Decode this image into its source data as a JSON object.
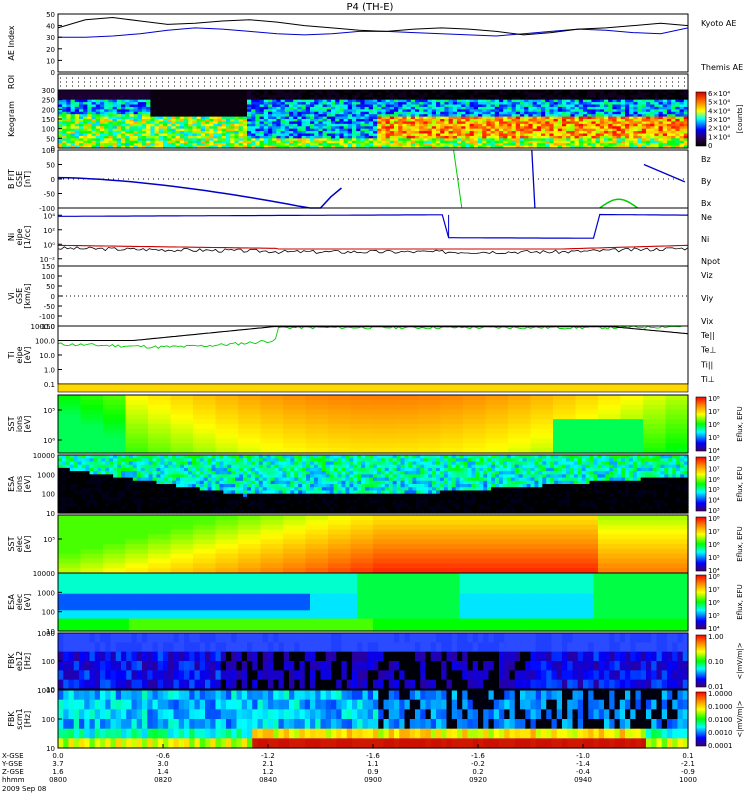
{
  "title": "P4 (TH-E)",
  "chart_data": {
    "type": "heatmap",
    "title": "P4 (TH-E)",
    "date": "2009 Sep 08",
    "x": {
      "label": "hhmm",
      "ticks": [
        "0800",
        "0820",
        "0840",
        "0900",
        "0920",
        "0940",
        "1000"
      ],
      "range": [
        "0800",
        "1000"
      ]
    },
    "orbit_rows": [
      {
        "label": "X-GSE",
        "values": [
          "0.0",
          "-0.6",
          "-1.2",
          "-1.6",
          "-1.6",
          "-1.0",
          "0.1"
        ]
      },
      {
        "label": "Y-GSE",
        "values": [
          "3.7",
          "3.0",
          "2.1",
          "1.1",
          "-0.2",
          "-1.4",
          "-2.1"
        ]
      },
      {
        "label": "Z-GSE",
        "values": [
          "1.6",
          "1.4",
          "1.2",
          "0.9",
          "0.2",
          "-0.4",
          "-0.9"
        ]
      }
    ],
    "panels": [
      {
        "id": "ae",
        "ylabel": "AE Index",
        "yticks": [
          "0",
          "10",
          "20",
          "30",
          "40",
          "50"
        ],
        "ylim": [
          0,
          50
        ],
        "legend": [
          {
            "name": "Kyoto AE",
            "color": "#0000cc"
          },
          {
            "name": "Themis AE",
            "color": "#000000"
          }
        ],
        "series": [
          {
            "name": "Kyoto AE",
            "color": "#0000cc",
            "values": [
              30,
              30,
              31,
              33,
              36,
              38,
              37,
              35,
              33,
              32,
              33,
              35,
              35,
              34,
              33,
              32,
              31,
              33,
              35,
              37,
              36,
              34,
              33,
              38
            ]
          },
          {
            "name": "Themis AE",
            "color": "#000000",
            "values": [
              38,
              45,
              47,
              44,
              41,
              42,
              44,
              45,
              43,
              40,
              38,
              36,
              35,
              37,
              38,
              37,
              35,
              32,
              34,
              37,
              38,
              40,
              42,
              40
            ]
          }
        ]
      },
      {
        "id": "roi",
        "ylabel": "ROI"
      },
      {
        "id": "keogram",
        "ylabel": "Keogram",
        "yticks": [
          "0",
          "50",
          "100",
          "150",
          "200",
          "250",
          "300"
        ],
        "ylim": [
          0,
          300
        ],
        "colorbar": {
          "label": "[counts]",
          "ticks": [
            "0",
            "1×10⁴",
            "2×10⁴",
            "3×10⁴",
            "4×10⁴",
            "5×10⁴",
            "6×10⁴"
          ]
        }
      },
      {
        "id": "bfit",
        "ylabel": "B FIT",
        "units": "[nT]",
        "sub": "GSE",
        "yticks": [
          "-100",
          "-50",
          "0",
          "50",
          "100"
        ],
        "ylim": [
          -100,
          100
        ],
        "legend": [
          {
            "name": "Bz",
            "color": "#cc0000"
          },
          {
            "name": "By",
            "color": "#00aa00"
          },
          {
            "name": "Bx",
            "color": "#0000cc"
          }
        ]
      },
      {
        "id": "ni",
        "ylabel": "Ni",
        "units": "[1/cc]",
        "sub": "eipe",
        "yticks": [
          "10⁻²",
          "10⁰",
          "10²",
          "10⁴"
        ],
        "legend": [
          {
            "name": "Ne",
            "color": "#cc0000"
          },
          {
            "name": "Ni",
            "color": "#000000"
          },
          {
            "name": "Npot",
            "color": "#0000cc"
          }
        ]
      },
      {
        "id": "vi",
        "ylabel": "Vi",
        "units": "[km/s]",
        "sub": "GSE",
        "yticks": [
          "-150",
          "-100",
          "-50",
          "0",
          "50",
          "100",
          "150"
        ],
        "ylim": [
          -150,
          150
        ],
        "legend": [
          {
            "name": "Viz",
            "color": "#cc0000"
          },
          {
            "name": "Viy",
            "color": "#00aa00"
          },
          {
            "name": "Vix",
            "color": "#0000cc"
          }
        ]
      },
      {
        "id": "ti",
        "ylabel": "Ti",
        "units": "[eV]",
        "sub": "eipe",
        "yticks": [
          "0.1",
          "1.0",
          "10.0",
          "100.0",
          "1000.0"
        ],
        "ylim": [
          0.1,
          1000
        ],
        "log": true,
        "legend": [
          {
            "name": "Te||",
            "color": "#000000"
          },
          {
            "name": "Te⊥",
            "color": "#cc0000"
          },
          {
            "name": "Ti||",
            "color": "#00aa00"
          },
          {
            "name": "Ti⊥",
            "color": "#0000cc"
          }
        ]
      },
      {
        "id": "sst_i",
        "ylabel": "SST",
        "units": "[eV]",
        "sub": "ions",
        "yticks": [
          "10⁵",
          "10⁶"
        ],
        "colorbar": {
          "label": "Eflux, EFU",
          "ticks": [
            "10⁴",
            "10⁵",
            "10⁶",
            "10⁷",
            "10⁸"
          ]
        }
      },
      {
        "id": "esa_i",
        "ylabel": "ESA",
        "units": "[eV]",
        "sub": "ions",
        "yticks": [
          "10",
          "100",
          "1000",
          "10000"
        ],
        "colorbar": {
          "label": "Eflux, EFU",
          "ticks": [
            "10³",
            "10⁴",
            "10⁵",
            "10⁶",
            "10⁷",
            "10⁸"
          ]
        }
      },
      {
        "id": "sst_e",
        "ylabel": "SST",
        "units": "[eV]",
        "sub": "elec",
        "yticks": [
          "10⁵"
        ],
        "colorbar": {
          "label": "Eflux, EFU",
          "ticks": [
            "10⁴",
            "10⁵",
            "10⁶",
            "10⁷",
            "10⁸"
          ]
        }
      },
      {
        "id": "esa_e",
        "ylabel": "ESA",
        "units": "[eV]",
        "sub": "elec",
        "yticks": [
          "10",
          "100",
          "1000",
          "10000"
        ],
        "colorbar": {
          "label": "Eflux, EFU",
          "ticks": [
            "10⁴",
            "10⁵",
            "10⁶",
            "10⁷",
            "10⁸"
          ]
        }
      },
      {
        "id": "fbk1",
        "ylabel": "FBK",
        "units": "[Hz]",
        "sub": "eb12",
        "yticks": [
          "10",
          "100",
          "1000"
        ],
        "colorbar": {
          "label": "<|mV/m|>",
          "ticks": [
            "0.01",
            "0.10",
            "1.00"
          ]
        }
      },
      {
        "id": "fbk2",
        "ylabel": "FBK",
        "units": "[Hz]",
        "sub": "scm1",
        "yticks": [
          "10",
          "100",
          "1000"
        ],
        "colorbar": {
          "label": "<|mV/m|>",
          "ticks": [
            "0.0001",
            "0.0010",
            "0.0100",
            "0.1000",
            "1.0000"
          ]
        }
      }
    ]
  }
}
